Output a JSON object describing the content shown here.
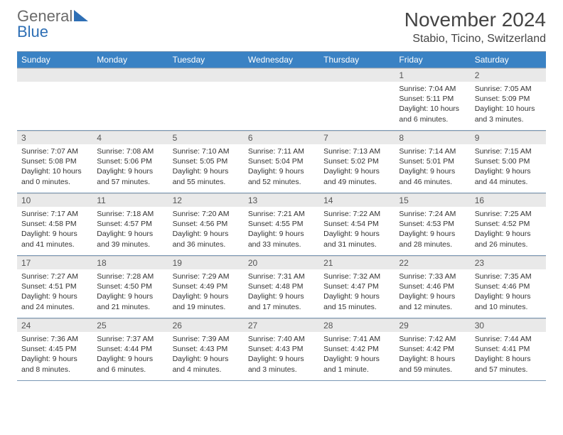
{
  "logo": {
    "line1": "General",
    "line2": "Blue"
  },
  "header": {
    "title": "November 2024",
    "subtitle": "Stabio, Ticino, Switzerland"
  },
  "style": {
    "header_bg": "#3a82c4",
    "header_text": "#ffffff",
    "grid_border": "#7a98b5",
    "daynum_bg": "#e9e9e9",
    "body_bg": "#ffffff",
    "text_color": "#333333",
    "title_fontsize": 28,
    "subtitle_fontsize": 16,
    "cell_fontsize": 10.5
  },
  "weekdays": [
    "Sunday",
    "Monday",
    "Tuesday",
    "Wednesday",
    "Thursday",
    "Friday",
    "Saturday"
  ],
  "grid": [
    [
      null,
      null,
      null,
      null,
      null,
      {
        "n": "1",
        "sr": "Sunrise: 7:04 AM",
        "ss": "Sunset: 5:11 PM",
        "dl": "Daylight: 10 hours and 6 minutes."
      },
      {
        "n": "2",
        "sr": "Sunrise: 7:05 AM",
        "ss": "Sunset: 5:09 PM",
        "dl": "Daylight: 10 hours and 3 minutes."
      }
    ],
    [
      {
        "n": "3",
        "sr": "Sunrise: 7:07 AM",
        "ss": "Sunset: 5:08 PM",
        "dl": "Daylight: 10 hours and 0 minutes."
      },
      {
        "n": "4",
        "sr": "Sunrise: 7:08 AM",
        "ss": "Sunset: 5:06 PM",
        "dl": "Daylight: 9 hours and 57 minutes."
      },
      {
        "n": "5",
        "sr": "Sunrise: 7:10 AM",
        "ss": "Sunset: 5:05 PM",
        "dl": "Daylight: 9 hours and 55 minutes."
      },
      {
        "n": "6",
        "sr": "Sunrise: 7:11 AM",
        "ss": "Sunset: 5:04 PM",
        "dl": "Daylight: 9 hours and 52 minutes."
      },
      {
        "n": "7",
        "sr": "Sunrise: 7:13 AM",
        "ss": "Sunset: 5:02 PM",
        "dl": "Daylight: 9 hours and 49 minutes."
      },
      {
        "n": "8",
        "sr": "Sunrise: 7:14 AM",
        "ss": "Sunset: 5:01 PM",
        "dl": "Daylight: 9 hours and 46 minutes."
      },
      {
        "n": "9",
        "sr": "Sunrise: 7:15 AM",
        "ss": "Sunset: 5:00 PM",
        "dl": "Daylight: 9 hours and 44 minutes."
      }
    ],
    [
      {
        "n": "10",
        "sr": "Sunrise: 7:17 AM",
        "ss": "Sunset: 4:58 PM",
        "dl": "Daylight: 9 hours and 41 minutes."
      },
      {
        "n": "11",
        "sr": "Sunrise: 7:18 AM",
        "ss": "Sunset: 4:57 PM",
        "dl": "Daylight: 9 hours and 39 minutes."
      },
      {
        "n": "12",
        "sr": "Sunrise: 7:20 AM",
        "ss": "Sunset: 4:56 PM",
        "dl": "Daylight: 9 hours and 36 minutes."
      },
      {
        "n": "13",
        "sr": "Sunrise: 7:21 AM",
        "ss": "Sunset: 4:55 PM",
        "dl": "Daylight: 9 hours and 33 minutes."
      },
      {
        "n": "14",
        "sr": "Sunrise: 7:22 AM",
        "ss": "Sunset: 4:54 PM",
        "dl": "Daylight: 9 hours and 31 minutes."
      },
      {
        "n": "15",
        "sr": "Sunrise: 7:24 AM",
        "ss": "Sunset: 4:53 PM",
        "dl": "Daylight: 9 hours and 28 minutes."
      },
      {
        "n": "16",
        "sr": "Sunrise: 7:25 AM",
        "ss": "Sunset: 4:52 PM",
        "dl": "Daylight: 9 hours and 26 minutes."
      }
    ],
    [
      {
        "n": "17",
        "sr": "Sunrise: 7:27 AM",
        "ss": "Sunset: 4:51 PM",
        "dl": "Daylight: 9 hours and 24 minutes."
      },
      {
        "n": "18",
        "sr": "Sunrise: 7:28 AM",
        "ss": "Sunset: 4:50 PM",
        "dl": "Daylight: 9 hours and 21 minutes."
      },
      {
        "n": "19",
        "sr": "Sunrise: 7:29 AM",
        "ss": "Sunset: 4:49 PM",
        "dl": "Daylight: 9 hours and 19 minutes."
      },
      {
        "n": "20",
        "sr": "Sunrise: 7:31 AM",
        "ss": "Sunset: 4:48 PM",
        "dl": "Daylight: 9 hours and 17 minutes."
      },
      {
        "n": "21",
        "sr": "Sunrise: 7:32 AM",
        "ss": "Sunset: 4:47 PM",
        "dl": "Daylight: 9 hours and 15 minutes."
      },
      {
        "n": "22",
        "sr": "Sunrise: 7:33 AM",
        "ss": "Sunset: 4:46 PM",
        "dl": "Daylight: 9 hours and 12 minutes."
      },
      {
        "n": "23",
        "sr": "Sunrise: 7:35 AM",
        "ss": "Sunset: 4:46 PM",
        "dl": "Daylight: 9 hours and 10 minutes."
      }
    ],
    [
      {
        "n": "24",
        "sr": "Sunrise: 7:36 AM",
        "ss": "Sunset: 4:45 PM",
        "dl": "Daylight: 9 hours and 8 minutes."
      },
      {
        "n": "25",
        "sr": "Sunrise: 7:37 AM",
        "ss": "Sunset: 4:44 PM",
        "dl": "Daylight: 9 hours and 6 minutes."
      },
      {
        "n": "26",
        "sr": "Sunrise: 7:39 AM",
        "ss": "Sunset: 4:43 PM",
        "dl": "Daylight: 9 hours and 4 minutes."
      },
      {
        "n": "27",
        "sr": "Sunrise: 7:40 AM",
        "ss": "Sunset: 4:43 PM",
        "dl": "Daylight: 9 hours and 3 minutes."
      },
      {
        "n": "28",
        "sr": "Sunrise: 7:41 AM",
        "ss": "Sunset: 4:42 PM",
        "dl": "Daylight: 9 hours and 1 minute."
      },
      {
        "n": "29",
        "sr": "Sunrise: 7:42 AM",
        "ss": "Sunset: 4:42 PM",
        "dl": "Daylight: 8 hours and 59 minutes."
      },
      {
        "n": "30",
        "sr": "Sunrise: 7:44 AM",
        "ss": "Sunset: 4:41 PM",
        "dl": "Daylight: 8 hours and 57 minutes."
      }
    ]
  ]
}
